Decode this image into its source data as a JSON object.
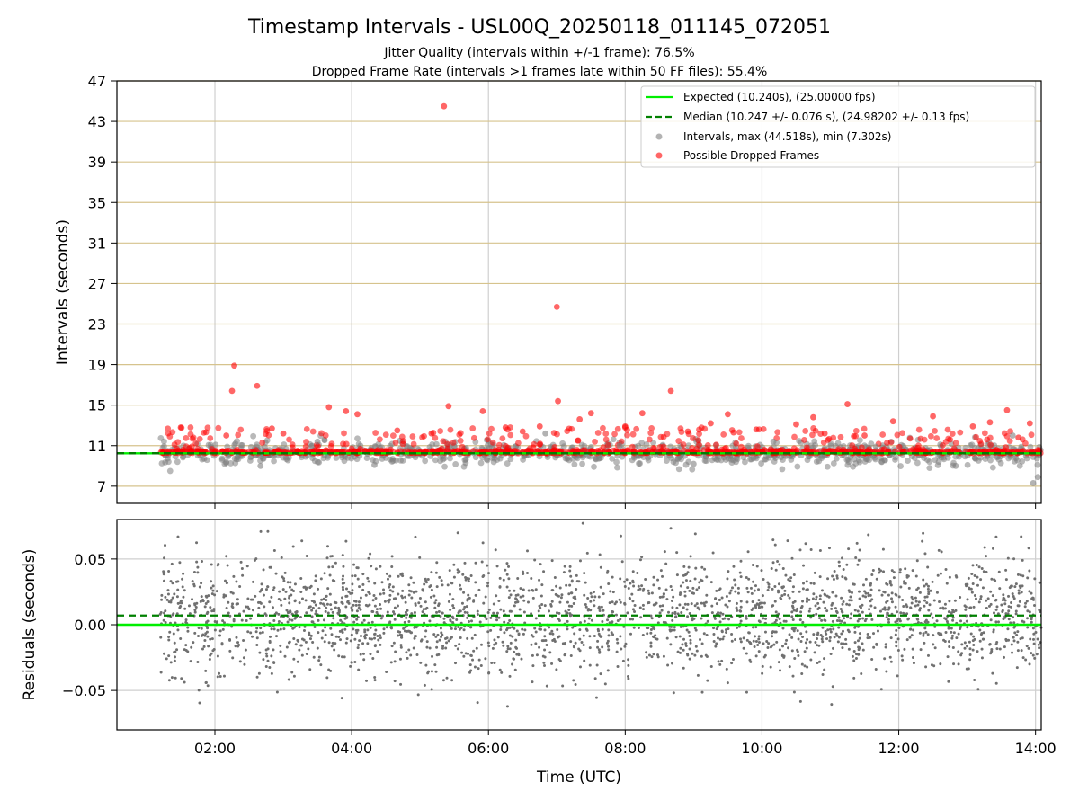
{
  "chart_data": [
    {
      "type": "scatter",
      "title": "Timestamp Intervals - USL00Q_20250118_011145_072051",
      "subtitle_lines": [
        "Jitter Quality (intervals within +/-1 frame): 76.5%",
        "Dropped Frame Rate (intervals >1 frames late within 50 FF files): 55.4%"
      ],
      "xlabel": "",
      "ylabel": "Intervals (seconds)",
      "xlim": [
        "00:34",
        "14:05"
      ],
      "ylim": [
        5.3,
        47
      ],
      "x_ticks": [
        "02:00",
        "04:00",
        "06:00",
        "08:00",
        "10:00",
        "12:00",
        "14:00"
      ],
      "y_ticks": [
        7,
        11,
        15,
        19,
        23,
        27,
        31,
        35,
        39,
        43,
        47
      ],
      "grid": true,
      "legend_position": "top-right",
      "data_start": "01:12",
      "data_end": "14:05",
      "series": [
        {
          "name": "Expected (10.240s), (25.00000 fps)",
          "kind": "line",
          "value": 10.24,
          "color": "#00ee00",
          "style": "solid"
        },
        {
          "name": "Median (10.247 +/- 0.076 s), (24.98202 +/- 0.13 fps)",
          "kind": "line",
          "value": 10.247,
          "color": "#008000",
          "style": "dashed"
        },
        {
          "name": "Intervals, max (44.518s), min (7.302s)",
          "kind": "points",
          "color": "#808080",
          "points": [
            [
              "02:18",
              11.2
            ],
            [
              "02:40",
              9.0
            ],
            [
              "03:30",
              11.4
            ],
            [
              "04:20",
              9.1
            ],
            [
              "05:40",
              9.3
            ],
            [
              "06:50",
              12.2
            ],
            [
              "07:55",
              11.0
            ],
            [
              "09:00",
              9.2
            ],
            [
              "10:10",
              11.4
            ],
            [
              "11:40",
              10.9
            ],
            [
              "12:50",
              9.0
            ],
            [
              "13:58",
              7.3
            ],
            [
              "14:02",
              7.9
            ],
            [
              "13:40",
              12.0
            ]
          ]
        },
        {
          "name": "Possible Dropped Frames",
          "kind": "points",
          "color": "#ff0000",
          "points": [
            [
              "05:21",
              44.5
            ],
            [
              "07:00",
              24.7
            ],
            [
              "02:17",
              18.9
            ],
            [
              "02:15",
              16.4
            ],
            [
              "02:37",
              16.9
            ],
            [
              "07:01",
              15.4
            ],
            [
              "08:40",
              16.4
            ],
            [
              "11:15",
              15.1
            ],
            [
              "01:30",
              12.8
            ],
            [
              "03:40",
              14.8
            ],
            [
              "03:55",
              14.4
            ],
            [
              "04:05",
              14.1
            ],
            [
              "05:25",
              14.9
            ],
            [
              "05:55",
              14.4
            ],
            [
              "07:20",
              13.6
            ],
            [
              "07:30",
              14.2
            ],
            [
              "08:00",
              12.9
            ],
            [
              "08:15",
              14.2
            ],
            [
              "09:15",
              13.2
            ],
            [
              "09:30",
              14.1
            ],
            [
              "09:35",
              12.3
            ],
            [
              "10:30",
              13.1
            ],
            [
              "10:45",
              13.8
            ],
            [
              "11:30",
              12.0
            ],
            [
              "11:55",
              13.4
            ],
            [
              "12:30",
              13.9
            ],
            [
              "13:05",
              12.9
            ],
            [
              "13:20",
              13.3
            ],
            [
              "13:35",
              14.5
            ],
            [
              "13:55",
              13.2
            ],
            [
              "02:10",
              12.0
            ],
            [
              "02:50",
              12.7
            ],
            [
              "03:00",
              12.2
            ],
            [
              "04:40",
              12.5
            ],
            [
              "05:10",
              12.2
            ],
            [
              "06:15",
              12.8
            ],
            [
              "06:30",
              12.4
            ],
            [
              "06:45",
              12.9
            ],
            [
              "08:55",
              12.4
            ],
            [
              "09:55",
              12.6
            ],
            [
              "10:55",
              12.2
            ],
            [
              "12:10",
              11.7
            ],
            [
              "12:45",
              11.6
            ],
            [
              "13:45",
              11.8
            ]
          ]
        }
      ]
    },
    {
      "type": "scatter",
      "xlabel": "Time (UTC)",
      "ylabel": "Residuals (seconds)",
      "xlim": [
        "00:34",
        "14:05"
      ],
      "ylim": [
        -0.08,
        0.08
      ],
      "x_ticks": [
        "02:00",
        "04:00",
        "06:00",
        "08:00",
        "10:00",
        "12:00",
        "14:00"
      ],
      "y_ticks": [
        -0.05,
        0.0,
        0.05
      ],
      "y_tick_labels": [
        "−0.05",
        "0.00",
        "0.05"
      ],
      "grid": true,
      "series": [
        {
          "kind": "line",
          "value": 0.0,
          "color": "#00ee00",
          "style": "solid"
        },
        {
          "kind": "line",
          "value": 0.007,
          "color": "#008000",
          "style": "dashed"
        },
        {
          "kind": "points",
          "color": "#707070",
          "distribution": "dense scatter roughly within ±0.05 s, mean about 0.007 s, from 01:12 to 14:05"
        }
      ]
    }
  ]
}
